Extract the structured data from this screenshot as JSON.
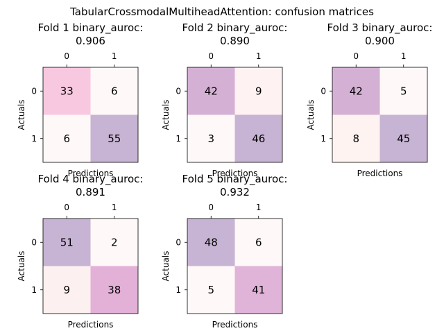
{
  "figure_title": "TabularCrossmodalMultiheadAttention: confusion matrices",
  "chart_data": [
    {
      "type": "heatmap",
      "title": "Fold 1 binary_auroc:\n0.906",
      "xlabel": "Predictions",
      "ylabel": "Actuals",
      "x_ticks": [
        "0",
        "1"
      ],
      "y_ticks": [
        "0",
        "1"
      ],
      "values": [
        [
          33,
          6
        ],
        [
          6,
          55
        ]
      ],
      "colors": [
        [
          "#f8c8e0",
          "#fff8f8"
        ],
        [
          "#fff8f8",
          "#c7b3d3"
        ]
      ]
    },
    {
      "type": "heatmap",
      "title": "Fold 2 binary_auroc:\n0.890",
      "xlabel": "Predictions",
      "ylabel": "Actuals",
      "x_ticks": [
        "0",
        "1"
      ],
      "y_ticks": [
        "0",
        "1"
      ],
      "values": [
        [
          42,
          9
        ],
        [
          3,
          46
        ]
      ],
      "colors": [
        [
          "#d5b0d5",
          "#fff2f2"
        ],
        [
          "#fff8f8",
          "#c7b3d3"
        ]
      ]
    },
    {
      "type": "heatmap",
      "title": "Fold 3 binary_auroc:\n0.900",
      "xlabel": "Predictions",
      "ylabel": "Actuals",
      "x_ticks": [
        "0",
        "1"
      ],
      "y_ticks": [
        "0",
        "1"
      ],
      "values": [
        [
          42,
          5
        ],
        [
          8,
          45
        ]
      ],
      "colors": [
        [
          "#d5b0d5",
          "#fff8f8"
        ],
        [
          "#fff3f1",
          "#c7b3d3"
        ]
      ]
    },
    {
      "type": "heatmap",
      "title": "Fold 4 binary_auroc:\n0.891",
      "xlabel": "Predictions",
      "ylabel": "Actuals",
      "x_ticks": [
        "0",
        "1"
      ],
      "y_ticks": [
        "0",
        "1"
      ],
      "values": [
        [
          51,
          2
        ],
        [
          9,
          38
        ]
      ],
      "colors": [
        [
          "#c7b3d3",
          "#fff8f8"
        ],
        [
          "#fdf0f0",
          "#e3b0d8"
        ]
      ]
    },
    {
      "type": "heatmap",
      "title": "Fold 5 binary_auroc:\n0.932",
      "xlabel": "Predictions",
      "ylabel": "Actuals",
      "x_ticks": [
        "0",
        "1"
      ],
      "y_ticks": [
        "0",
        "1"
      ],
      "values": [
        [
          48,
          6
        ],
        [
          5,
          41
        ]
      ],
      "colors": [
        [
          "#c7b3d3",
          "#fff8f8"
        ],
        [
          "#fff8f8",
          "#e0b3d8"
        ]
      ]
    }
  ]
}
